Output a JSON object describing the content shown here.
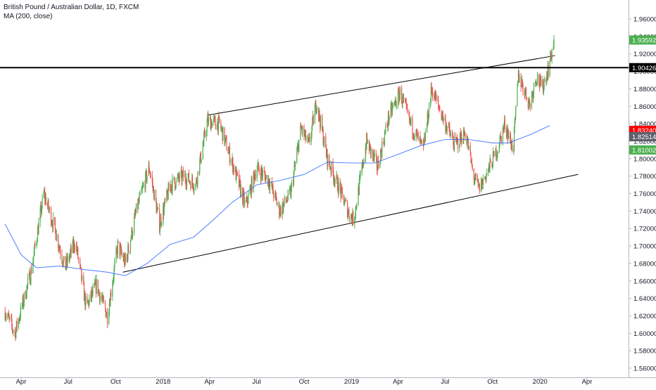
{
  "header": {
    "title": "British Pound / Australian Dollar, 1D, FXCM",
    "indicator": "MA (200, close)"
  },
  "colors": {
    "up": "#4caf50",
    "down": "#ef5350",
    "ma": "#2962ff",
    "trendline": "#000000",
    "axis_text": "#131722",
    "price_badge_up": "#4caf50",
    "level_badge": "#000000",
    "badge_red": "#ff0000",
    "badge_gray": "#5d606b"
  },
  "chart_data": {
    "type": "candlestick",
    "title": "British Pound / Australian Dollar, 1D, FXCM",
    "xlabel": "",
    "ylabel": "",
    "x_ticks": [
      "Apr",
      "Jul",
      "Oct",
      "2018",
      "Apr",
      "Jul",
      "Oct",
      "2019",
      "Apr",
      "Jul",
      "Oct",
      "2020",
      "Apr"
    ],
    "x_range": [
      "2017-03-01",
      "2020-06-01"
    ],
    "y_ticks": [
      "1.96000",
      "1.94000",
      "1.92000",
      "1.90000",
      "1.88000",
      "1.86000",
      "1.84000",
      "1.82000",
      "1.80000",
      "1.78000",
      "1.76000",
      "1.74000",
      "1.72000",
      "1.70000",
      "1.68000",
      "1.66000",
      "1.64000",
      "1.62000",
      "1.60000",
      "1.58000",
      "1.56000"
    ],
    "ylim": [
      1.56,
      1.96
    ],
    "grid": false,
    "price_path": [
      {
        "date": "2017-03-01",
        "value": 1.625
      },
      {
        "date": "2017-03-20",
        "value": 1.6
      },
      {
        "date": "2017-04-20",
        "value": 1.67
      },
      {
        "date": "2017-05-15",
        "value": 1.76
      },
      {
        "date": "2017-06-05",
        "value": 1.72
      },
      {
        "date": "2017-06-25",
        "value": 1.675
      },
      {
        "date": "2017-07-15",
        "value": 1.705
      },
      {
        "date": "2017-08-05",
        "value": 1.63
      },
      {
        "date": "2017-08-25",
        "value": 1.655
      },
      {
        "date": "2017-09-15",
        "value": 1.62
      },
      {
        "date": "2017-10-05",
        "value": 1.7
      },
      {
        "date": "2017-10-20",
        "value": 1.68
      },
      {
        "date": "2017-11-10",
        "value": 1.74
      },
      {
        "date": "2017-12-05",
        "value": 1.79
      },
      {
        "date": "2017-12-25",
        "value": 1.725
      },
      {
        "date": "2018-01-15",
        "value": 1.77
      },
      {
        "date": "2018-02-10",
        "value": 1.78
      },
      {
        "date": "2018-03-05",
        "value": 1.77
      },
      {
        "date": "2018-03-28",
        "value": 1.843
      },
      {
        "date": "2018-04-20",
        "value": 1.84
      },
      {
        "date": "2018-05-15",
        "value": 1.795
      },
      {
        "date": "2018-06-10",
        "value": 1.745
      },
      {
        "date": "2018-07-01",
        "value": 1.79
      },
      {
        "date": "2018-07-25",
        "value": 1.775
      },
      {
        "date": "2018-08-15",
        "value": 1.74
      },
      {
        "date": "2018-09-05",
        "value": 1.76
      },
      {
        "date": "2018-09-25",
        "value": 1.835
      },
      {
        "date": "2018-10-10",
        "value": 1.815
      },
      {
        "date": "2018-10-25",
        "value": 1.865
      },
      {
        "date": "2018-11-15",
        "value": 1.8
      },
      {
        "date": "2018-12-05",
        "value": 1.77
      },
      {
        "date": "2018-12-25",
        "value": 1.74
      },
      {
        "date": "2019-01-05",
        "value": 1.73
      },
      {
        "date": "2019-01-30",
        "value": 1.82
      },
      {
        "date": "2019-02-20",
        "value": 1.79
      },
      {
        "date": "2019-03-15",
        "value": 1.85
      },
      {
        "date": "2019-04-05",
        "value": 1.875
      },
      {
        "date": "2019-04-25",
        "value": 1.84
      },
      {
        "date": "2019-05-20",
        "value": 1.81
      },
      {
        "date": "2019-06-05",
        "value": 1.88
      },
      {
        "date": "2019-06-25",
        "value": 1.85
      },
      {
        "date": "2019-07-20",
        "value": 1.815
      },
      {
        "date": "2019-08-10",
        "value": 1.83
      },
      {
        "date": "2019-08-25",
        "value": 1.78
      },
      {
        "date": "2019-09-05",
        "value": 1.765
      },
      {
        "date": "2019-09-25",
        "value": 1.79
      },
      {
        "date": "2019-10-10",
        "value": 1.81
      },
      {
        "date": "2019-10-25",
        "value": 1.84
      },
      {
        "date": "2019-11-10",
        "value": 1.81
      },
      {
        "date": "2019-11-20",
        "value": 1.895
      },
      {
        "date": "2019-12-01",
        "value": 1.88
      },
      {
        "date": "2019-12-12",
        "value": 1.862
      },
      {
        "date": "2019-12-25",
        "value": 1.895
      },
      {
        "date": "2020-01-05",
        "value": 1.88
      },
      {
        "date": "2020-01-18",
        "value": 1.905
      },
      {
        "date": "2020-01-28",
        "value": 1.936
      }
    ],
    "ma_200": [
      {
        "date": "2017-03-01",
        "value": 1.725
      },
      {
        "date": "2017-04-01",
        "value": 1.69
      },
      {
        "date": "2017-05-01",
        "value": 1.675
      },
      {
        "date": "2017-06-15",
        "value": 1.677
      },
      {
        "date": "2017-08-01",
        "value": 1.673
      },
      {
        "date": "2017-09-15",
        "value": 1.67
      },
      {
        "date": "2017-10-20",
        "value": 1.666
      },
      {
        "date": "2017-12-01",
        "value": 1.68
      },
      {
        "date": "2018-01-15",
        "value": 1.702
      },
      {
        "date": "2018-03-01",
        "value": 1.71
      },
      {
        "date": "2018-04-01",
        "value": 1.726
      },
      {
        "date": "2018-05-15",
        "value": 1.75
      },
      {
        "date": "2018-07-01",
        "value": 1.77
      },
      {
        "date": "2018-08-15",
        "value": 1.775
      },
      {
        "date": "2018-10-01",
        "value": 1.782
      },
      {
        "date": "2018-11-15",
        "value": 1.796
      },
      {
        "date": "2019-01-01",
        "value": 1.795
      },
      {
        "date": "2019-02-15",
        "value": 1.795
      },
      {
        "date": "2019-04-01",
        "value": 1.805
      },
      {
        "date": "2019-05-15",
        "value": 1.815
      },
      {
        "date": "2019-07-01",
        "value": 1.822
      },
      {
        "date": "2019-08-15",
        "value": 1.822
      },
      {
        "date": "2019-10-01",
        "value": 1.818
      },
      {
        "date": "2019-11-01",
        "value": 1.818
      },
      {
        "date": "2019-12-15",
        "value": 1.828
      },
      {
        "date": "2020-01-20",
        "value": 1.838
      }
    ],
    "trendlines": [
      {
        "name": "channel-upper",
        "start": {
          "date": "2018-03-30",
          "value": 1.85
        },
        "end": {
          "date": "2020-01-30",
          "value": 1.918
        }
      },
      {
        "name": "channel-lower",
        "start": {
          "date": "2017-10-15",
          "value": 1.67
        },
        "end": {
          "date": "2020-03-15",
          "value": 1.782
        }
      },
      {
        "name": "horizontal-level",
        "value": 1.90426
      }
    ],
    "price_labels": [
      {
        "text": "1.93592",
        "value": 1.93592,
        "style": "up"
      },
      {
        "text": "1.90426",
        "value": 1.90426,
        "style": "level"
      },
      {
        "text": "1.83240",
        "value": 1.8324,
        "style": "red"
      },
      {
        "text": "1.82514",
        "value": 1.82514,
        "style": "gray"
      },
      {
        "text": "1.81002",
        "value": 1.81002,
        "style": "up"
      }
    ]
  }
}
